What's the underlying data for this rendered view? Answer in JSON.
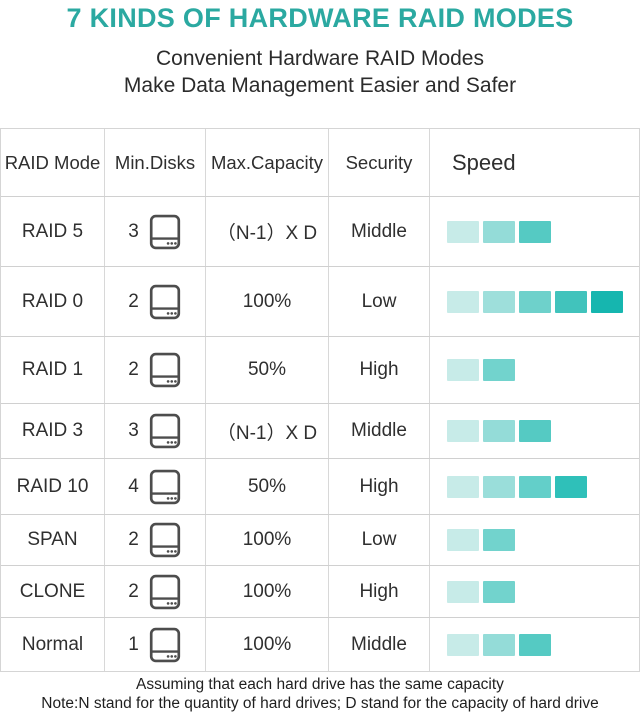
{
  "title": "7 KINDS OF HARDWARE RAID MODES",
  "subtitle": {
    "line1": "Convenient Hardware RAID Modes",
    "line2": "Make Data Management Easier and Safer"
  },
  "colors": {
    "accent_teal": "#2BA9A1",
    "grid_line": "#d5d5d5",
    "icon_gray": "#4d4d4d",
    "speed_palette_light_to_dark": [
      "#c7ebe8",
      "#9adeda",
      "#6ed1cb",
      "#41c3bc",
      "#16b6af"
    ]
  },
  "table": {
    "headers": [
      "RAID Mode",
      "Min.Disks",
      "Max.Capacity",
      "Security",
      "Speed"
    ],
    "rows": [
      {
        "mode": "RAID 5",
        "min_disks": "3",
        "max_capacity": "（N-1）X D",
        "security": "Middle",
        "speed_level": 3,
        "speed_colors": [
          "#c7ebe8",
          "#94dcd8",
          "#55cac3"
        ]
      },
      {
        "mode": "RAID 0",
        "min_disks": "2",
        "max_capacity": "100%",
        "security": "Low",
        "speed_level": 5,
        "speed_colors": [
          "#c7ebe8",
          "#9edfdb",
          "#6ed1cb",
          "#41c3bc",
          "#16b6af"
        ]
      },
      {
        "mode": "RAID 1",
        "min_disks": "2",
        "max_capacity": "50%",
        "security": "High",
        "speed_level": 2,
        "speed_colors": [
          "#c7ebe8",
          "#72d3cd"
        ]
      },
      {
        "mode": "RAID 3",
        "min_disks": "3",
        "max_capacity": "（N-1）X D",
        "security": "Middle",
        "speed_level": 3,
        "speed_colors": [
          "#c7ebe8",
          "#94dcd8",
          "#55cac3"
        ]
      },
      {
        "mode": "RAID 10",
        "min_disks": "4",
        "max_capacity": "50%",
        "security": "High",
        "speed_level": 4,
        "speed_colors": [
          "#c7ebe8",
          "#9adeda",
          "#63cfc9",
          "#2fc0b9"
        ]
      },
      {
        "mode": "SPAN",
        "min_disks": "2",
        "max_capacity": "100%",
        "security": "Low",
        "speed_level": 2,
        "speed_colors": [
          "#c7ebe8",
          "#72d3cd"
        ]
      },
      {
        "mode": "CLONE",
        "min_disks": "2",
        "max_capacity": "100%",
        "security": "High",
        "speed_level": 2,
        "speed_colors": [
          "#c7ebe8",
          "#72d3cd"
        ]
      },
      {
        "mode": "Normal",
        "min_disks": "1",
        "max_capacity": "100%",
        "security": "Middle",
        "speed_level": 3,
        "speed_colors": [
          "#c7ebe8",
          "#94dcd8",
          "#55cac3"
        ]
      }
    ]
  },
  "footer": {
    "line1": "Assuming that each hard drive has the same capacity",
    "line2": "Note:N stand for the quantity of hard drives; D stand for the capacity of hard drive"
  },
  "chart_data": {
    "type": "table",
    "title": "7 KINDS OF HARDWARE RAID MODES",
    "columns": [
      "RAID Mode",
      "Min.Disks",
      "Max.Capacity",
      "Security",
      "Speed (bar segments, more = faster)"
    ],
    "rows": [
      [
        "RAID 5",
        "3",
        "（N-1）X D",
        "Middle",
        3
      ],
      [
        "RAID 0",
        "2",
        "100%",
        "Low",
        5
      ],
      [
        "RAID 1",
        "2",
        "50%",
        "High",
        2
      ],
      [
        "RAID 3",
        "3",
        "（N-1）X D",
        "Middle",
        3
      ],
      [
        "RAID 10",
        "4",
        "50%",
        "High",
        4
      ],
      [
        "SPAN",
        "2",
        "100%",
        "Low",
        2
      ],
      [
        "CLONE",
        "2",
        "100%",
        "High",
        2
      ],
      [
        "Normal",
        "1",
        "100%",
        "Middle",
        3
      ]
    ]
  }
}
